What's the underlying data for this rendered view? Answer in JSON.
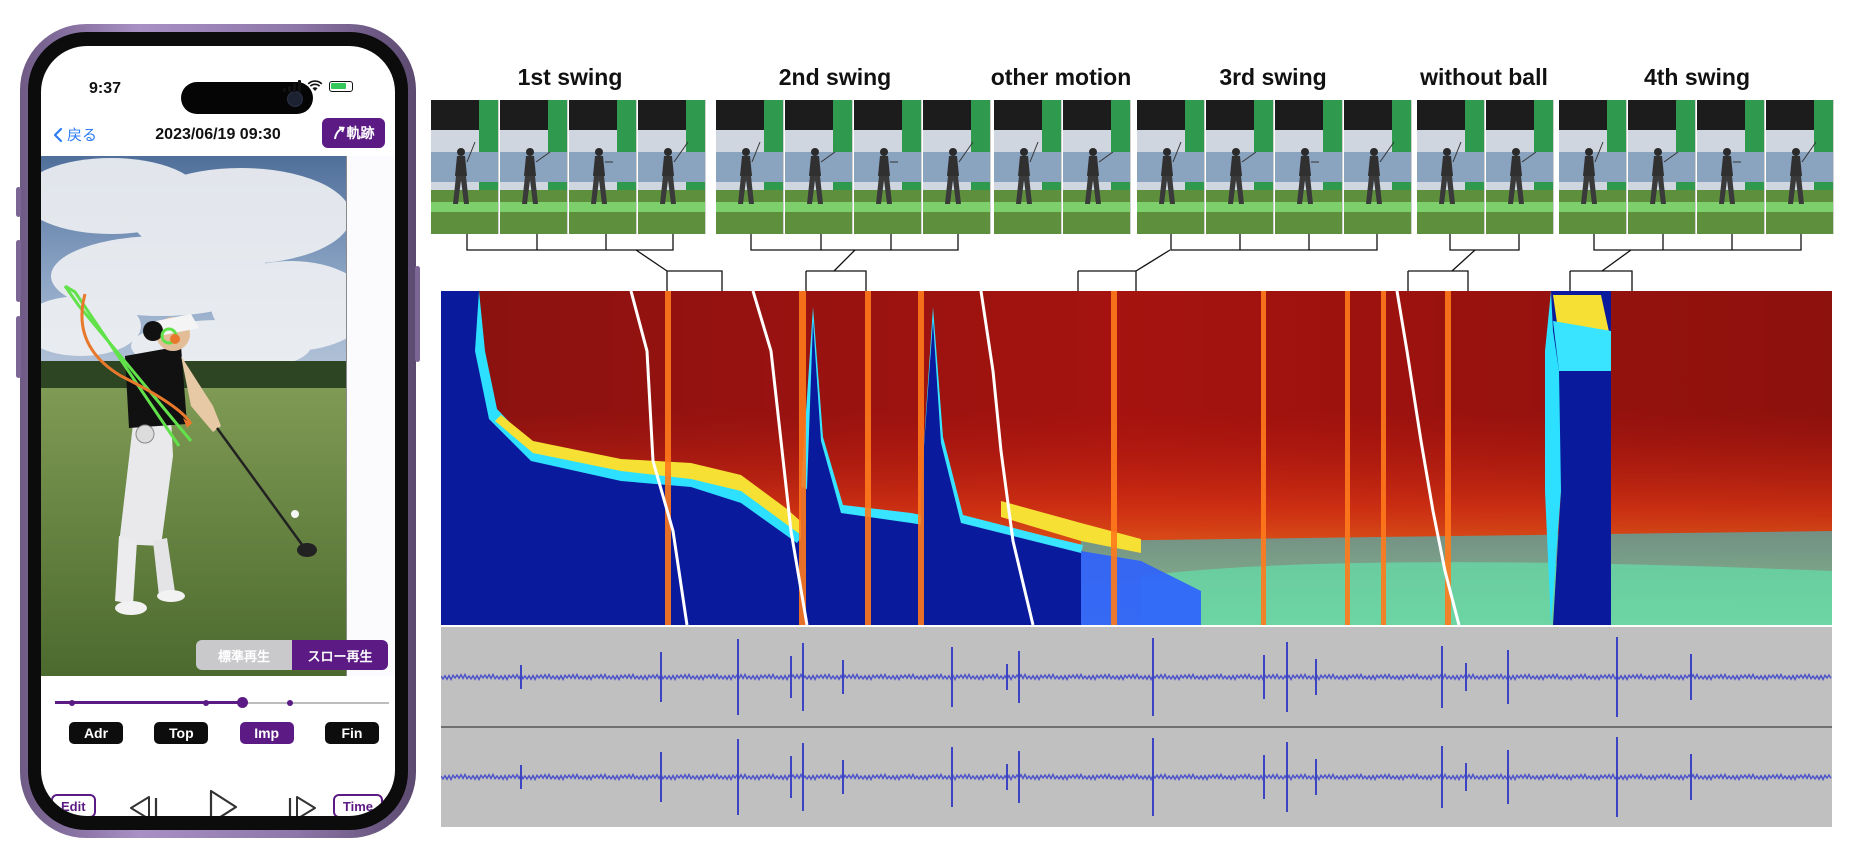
{
  "phone": {
    "status_time": "9:37",
    "back_label": "戻る",
    "datetime": "2023/06/19 09:30",
    "trajectory_label": "軌跡",
    "speed_normal": "標準再生",
    "speed_slow": "スロー再生",
    "speed_selected": "スロー再生",
    "playback_position": 0.56,
    "phases": [
      "Adr",
      "Top",
      "Imp",
      "Fin"
    ],
    "active_phase": "Imp",
    "edit_label": "Edit",
    "time_label": "Time",
    "icons": [
      "chevron-left-icon",
      "trajectory-arrow-icon",
      "signal-icon",
      "wifi-icon",
      "battery-charging-icon",
      "step-back-icon",
      "play-icon",
      "step-forward-icon"
    ],
    "colors": {
      "accent": "#5b1a84",
      "link": "#2d7cf6"
    }
  },
  "figure": {
    "labels": [
      "1st swing",
      "2nd swing",
      "other motion",
      "3rd swing",
      "without ball",
      "4th swing"
    ]
  }
}
